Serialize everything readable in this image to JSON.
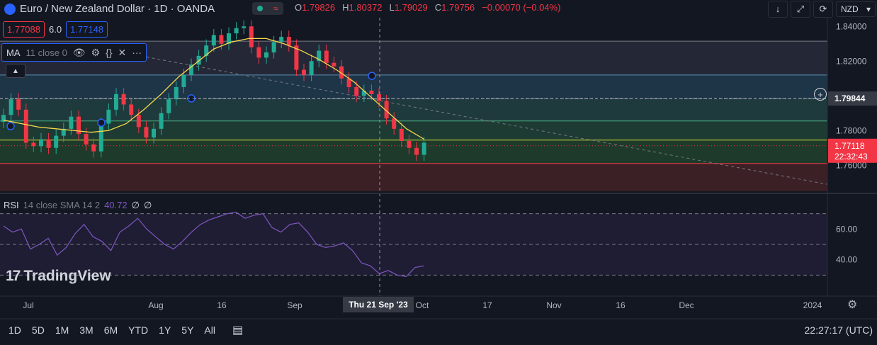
{
  "header": {
    "title": "Euro / New Zealand Dollar · 1D · OANDA",
    "ohlc": {
      "o_label": "O",
      "o": "1.79826",
      "h_label": "H",
      "h": "1.80372",
      "l_label": "L",
      "l": "1.79029",
      "c_label": "C",
      "c": "1.79756",
      "change": "−0.00070 (−0.04%)"
    },
    "bid": "1.77088",
    "spread": "6.0",
    "ask": "1.77148",
    "currency": "NZD"
  },
  "ma": {
    "name": "MA",
    "params": "11 close 0"
  },
  "rsi": {
    "name": "RSI",
    "params": "14 close SMA 14 2",
    "value": "40.72",
    "v2": "∅",
    "v3": "∅"
  },
  "logo": {
    "text": "TradingView"
  },
  "price_axis": {
    "ticks": [
      "1.84000",
      "1.82000",
      "1.80000",
      "1.78000",
      "1.76000"
    ],
    "crosshair_label": "1.79844",
    "last_price": "1.77118",
    "countdown": "22:32:43"
  },
  "rsi_axis": {
    "ticks": [
      "60.00",
      "40.00"
    ]
  },
  "time_axis": {
    "ticks": [
      "Jul",
      "Aug",
      "16",
      "Sep",
      "Oct",
      "17",
      "Nov",
      "16",
      "Dec",
      "2024"
    ],
    "crosshair_label": "Thu 21 Sep '23"
  },
  "bottom": {
    "ranges": [
      "1D",
      "5D",
      "1M",
      "3M",
      "6M",
      "YTD",
      "1Y",
      "5Y",
      "All"
    ],
    "timezone_clock": "22:27:17 (UTC)"
  },
  "colors": {
    "up": "#22ab94",
    "down": "#f23645",
    "ma": "#f7d94c",
    "rsi": "#7e57c2",
    "bg": "#131722"
  },
  "chart_data": {
    "type": "candlestick",
    "series": [
      {
        "name": "EUR/NZD",
        "ohlc_close": [
          1.789,
          1.798,
          1.792,
          1.773,
          1.771,
          1.775,
          1.77,
          1.777,
          1.781,
          1.788,
          1.778,
          1.772,
          1.768,
          1.784,
          1.792,
          1.801,
          1.795,
          1.789,
          1.782,
          1.776,
          1.781,
          1.79,
          1.798,
          1.805,
          1.812,
          1.818,
          1.823,
          1.829,
          1.835,
          1.83,
          1.836,
          1.839,
          1.84,
          1.828,
          1.822,
          1.825,
          1.831,
          1.834,
          1.829,
          1.815,
          1.812,
          1.82,
          1.826,
          1.819,
          1.817,
          1.81,
          1.805,
          1.8,
          1.803,
          1.801,
          1.797,
          1.787,
          1.781,
          1.774,
          1.77,
          1.766,
          1.773
        ]
      }
    ],
    "ma_values": [
      1.786,
      1.784,
      1.782,
      1.781,
      1.78,
      1.779,
      1.78,
      1.784,
      1.792,
      1.801,
      1.811,
      1.819,
      1.827,
      1.831,
      1.833,
      1.833,
      1.83,
      1.826,
      1.821,
      1.815,
      1.808,
      1.799,
      1.79,
      1.781,
      1.775
    ],
    "rsi_values": [
      62,
      58,
      60,
      47,
      50,
      54,
      43,
      48,
      57,
      63,
      55,
      52,
      46,
      58,
      62,
      67,
      60,
      55,
      50,
      47,
      52,
      58,
      63,
      66,
      68,
      70,
      71,
      67,
      69,
      70,
      61,
      58,
      63,
      64,
      58,
      50,
      48,
      49,
      51,
      46,
      38,
      36,
      31,
      33,
      30,
      29,
      35,
      36
    ],
    "y_range": [
      1.745,
      1.845
    ],
    "rsi_range": [
      20,
      80
    ],
    "levels": [
      1.8315,
      1.812,
      1.7984,
      1.7855,
      1.7745,
      1.769,
      1.761
    ]
  }
}
